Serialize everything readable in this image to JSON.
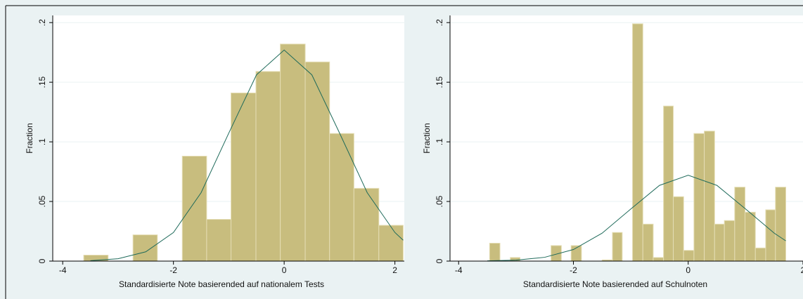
{
  "chart_data": [
    {
      "type": "histogram",
      "x_label": "Standardisierte Note basierended auf nationalem Tests",
      "y_label": "Fraction",
      "bins": [
        -3.62,
        -3.18,
        -2.73,
        -2.29,
        -1.84,
        -1.4,
        -0.96,
        -0.51,
        -0.07,
        0.38,
        0.82,
        1.26,
        1.71,
        2.15
      ],
      "values": [
        0.005,
        0,
        0.022,
        0,
        0.088,
        0.035,
        0.141,
        0.159,
        0.182,
        0.167,
        0.107,
        0.061,
        0.03
      ],
      "color": "#c8bd7e",
      "density": {
        "x": [
          -3.5,
          -3,
          -2.5,
          -2,
          -1.5,
          -1,
          -0.5,
          0,
          0.5,
          1,
          1.5,
          2,
          2.15
        ],
        "values": [
          0.0004,
          0.002,
          0.0078,
          0.024,
          0.0574,
          0.1074,
          0.1562,
          0.177,
          0.1562,
          0.1074,
          0.0574,
          0.024,
          0.0175
        ],
        "color": "#1e6a5a"
      },
      "xlim": [
        -4.18,
        2.17
      ],
      "xticks": [
        -4,
        -2,
        0,
        2
      ],
      "ylim": [
        0,
        0.206
      ],
      "yticks": [
        0,
        {
          "value": 0.05,
          "label": ".05"
        },
        {
          "value": 0.1,
          "label": ".1"
        },
        {
          "value": 0.15,
          "label": ".15"
        },
        {
          "value": 0.2,
          "label": ".2"
        }
      ],
      "grid": true
    },
    {
      "type": "histogram",
      "x_label": "Standardisierte Note basierended auf Schulnoten",
      "y_label": "Fraction",
      "bins": [
        -3.46,
        -3.28,
        -3.1,
        -2.93,
        -2.75,
        -2.57,
        -2.39,
        -2.21,
        -2.04,
        -1.86,
        -1.68,
        -1.5,
        -1.32,
        -1.15,
        -0.97,
        -0.79,
        -0.61,
        -0.43,
        -0.26,
        -0.08,
        0.1,
        0.28,
        0.46,
        0.63,
        0.81,
        0.99,
        1.17,
        1.35,
        1.52,
        1.7
      ],
      "values": [
        0.015,
        0,
        0.003,
        0,
        0,
        0,
        0.013,
        0,
        0.013,
        0,
        0,
        0.001,
        0.024,
        0,
        0.199,
        0.031,
        0.003,
        0.13,
        0.054,
        0.009,
        0.107,
        0.109,
        0.031,
        0.034,
        0.062,
        0.041,
        0.011,
        0.043,
        0.062
      ],
      "color": "#c8bd7e",
      "density": {
        "x": [
          -3.5,
          -3,
          -2.5,
          -2,
          -1.5,
          -1,
          -0.5,
          0,
          0.5,
          1,
          1.5,
          1.7
        ],
        "values": [
          0.0002,
          0.0008,
          0.0032,
          0.0097,
          0.0234,
          0.0437,
          0.0635,
          0.072,
          0.0635,
          0.0437,
          0.0234,
          0.017
        ],
        "color": "#1e6a5a"
      },
      "xlim": [
        -4.15,
        2.0
      ],
      "xticks": [
        -4,
        -2,
        0,
        2
      ],
      "ylim": [
        0,
        0.206
      ],
      "yticks": [
        0,
        {
          "value": 0.05,
          "label": ".05"
        },
        {
          "value": 0.1,
          "label": ".1"
        },
        {
          "value": 0.15,
          "label": ".15"
        },
        {
          "value": 0.2,
          "label": ".2"
        }
      ],
      "grid": true
    }
  ]
}
